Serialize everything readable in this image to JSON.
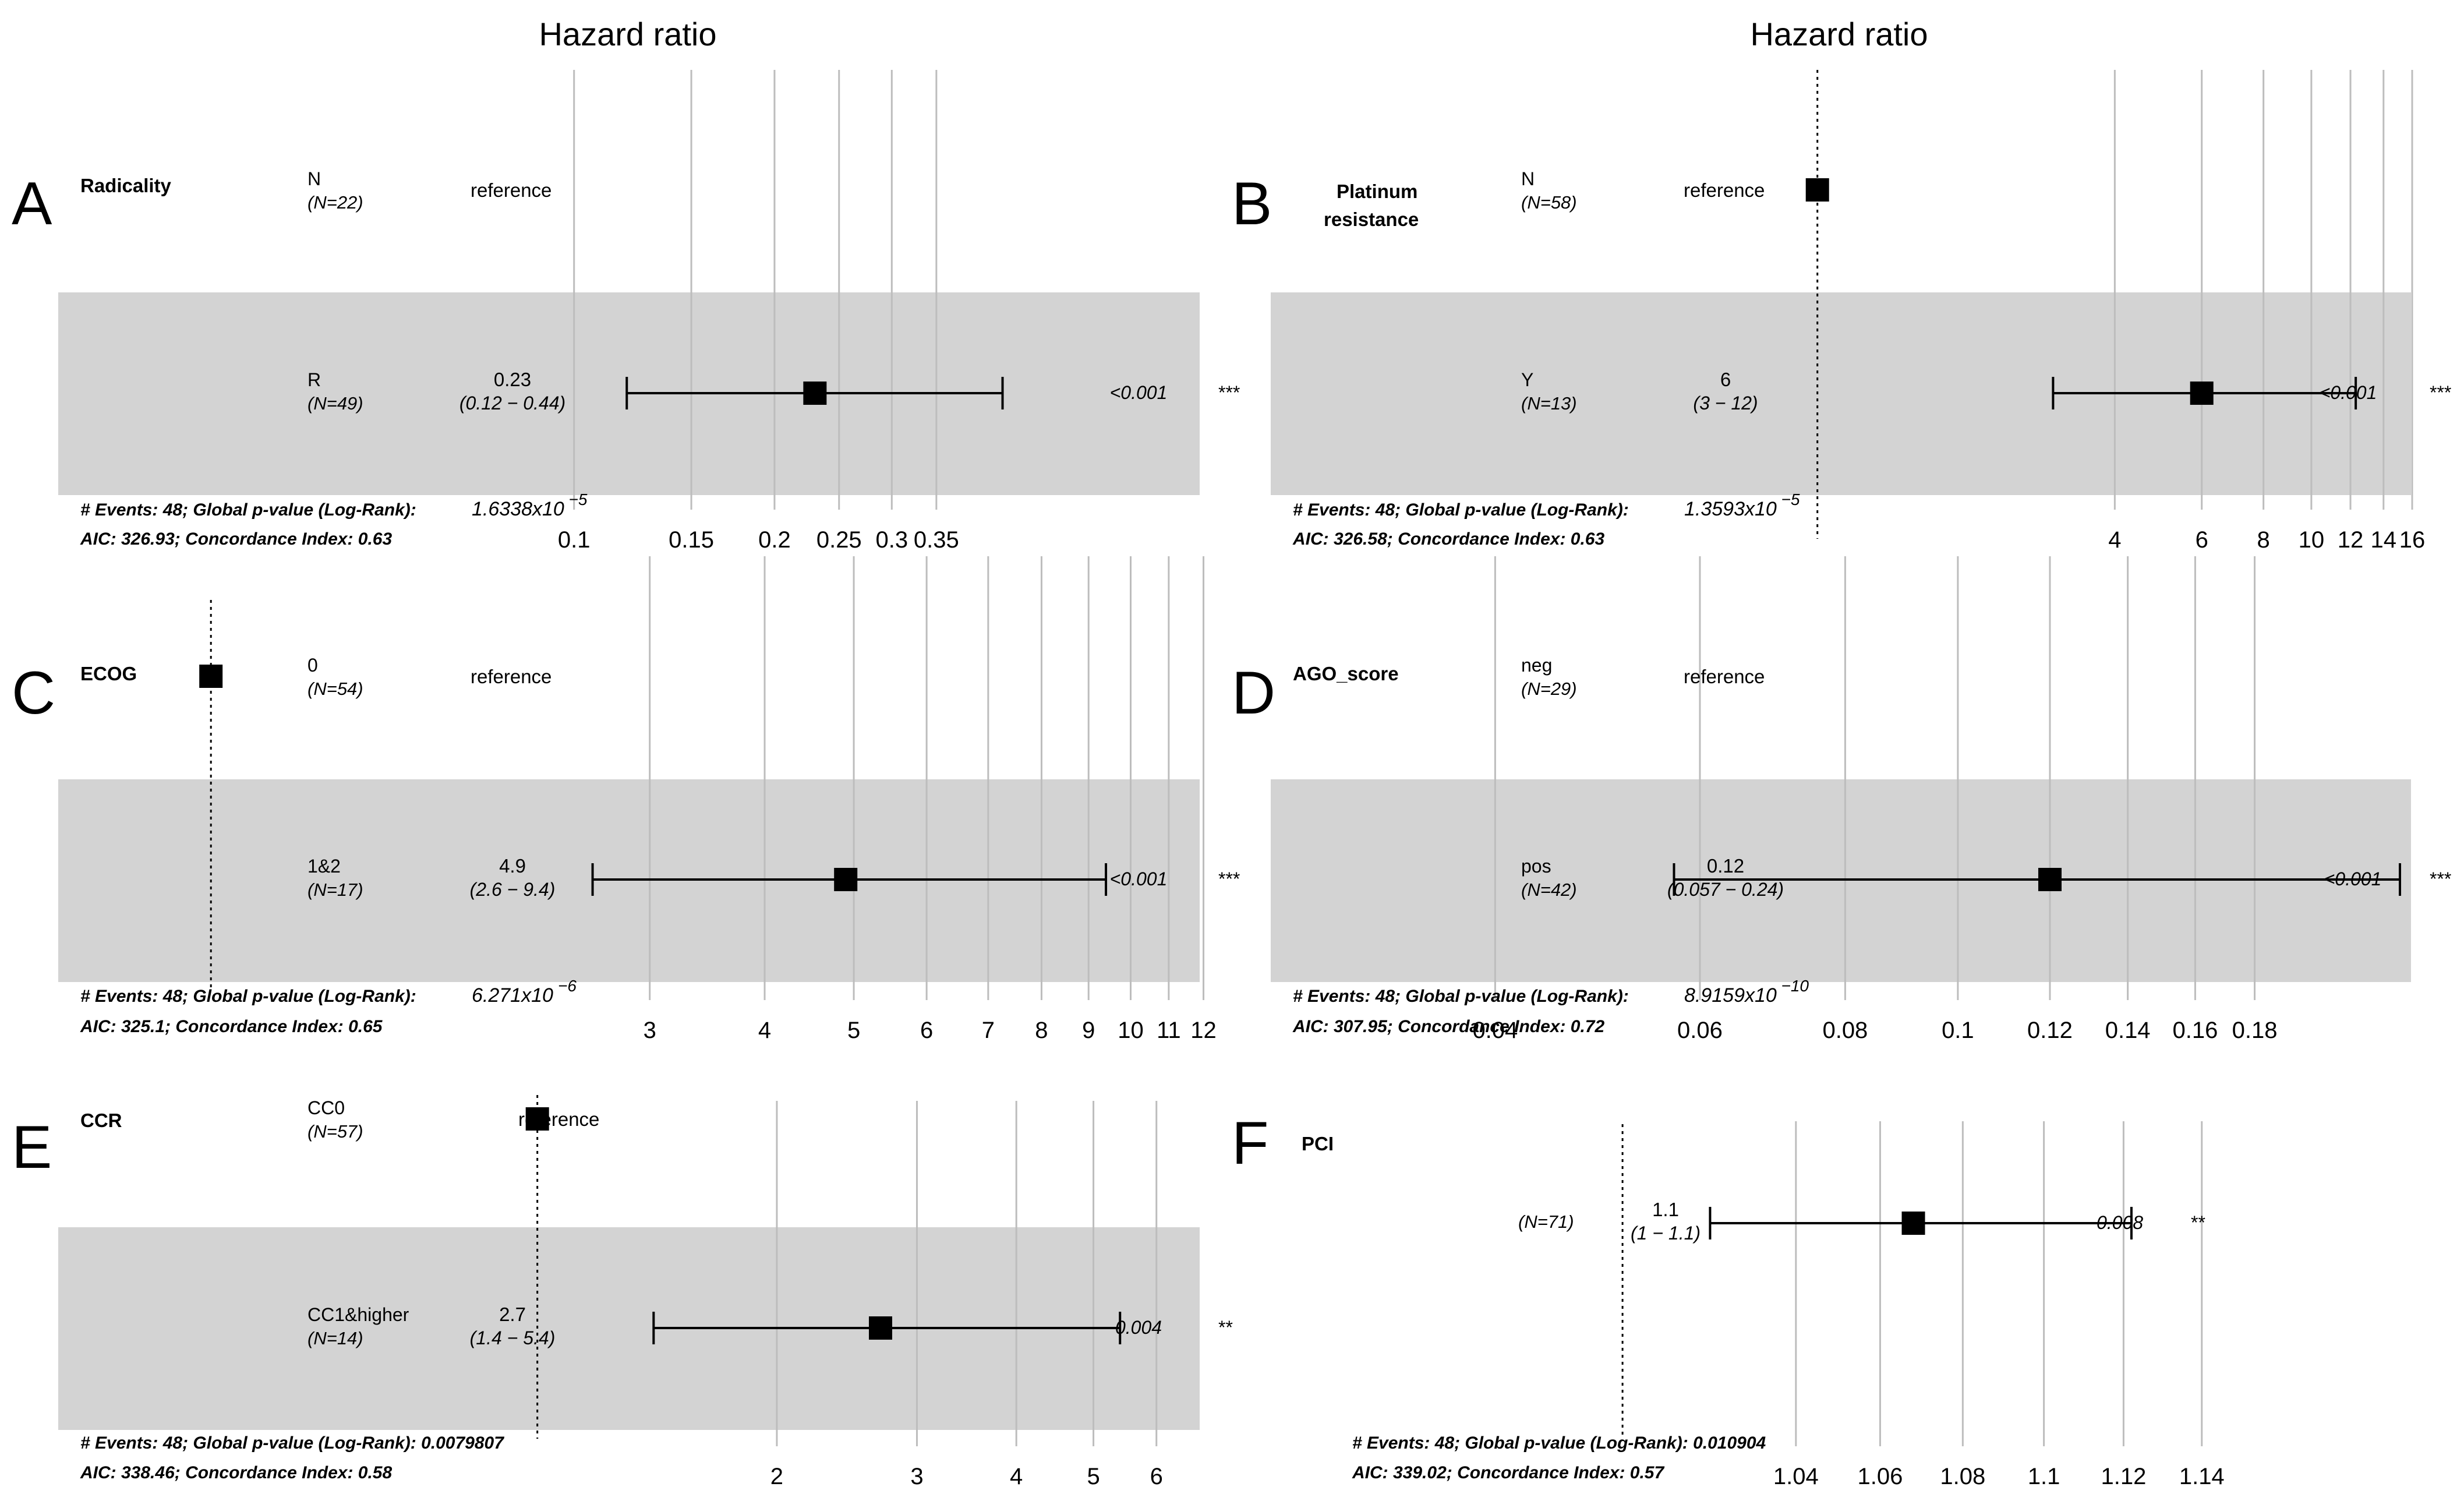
{
  "figure": {
    "hazard_label_left": "Hazard ratio",
    "hazard_label_right": "Hazard ratio"
  },
  "colors": {
    "band": "#d3d3d3",
    "grid": "#bdbdbd",
    "ink": "#000000"
  },
  "chart_data": [
    {
      "type": "forest",
      "panel": "A",
      "variable": [
        "Radicality"
      ],
      "scale": "log",
      "xlim": [
        0.085,
        0.5
      ],
      "ticks": [
        0.1,
        0.15,
        0.2,
        0.25,
        0.3,
        0.35
      ],
      "tick_labels": [
        "0.1",
        "0.15",
        "0.2",
        "0.25",
        "0.3",
        "0.35"
      ],
      "reference_line": null,
      "rows": [
        {
          "level": "N",
          "n": "(N=22)",
          "estimate_text": "reference",
          "ci_text": ""
        },
        {
          "level": "R",
          "n": "(N=49)",
          "estimate_text": "0.23",
          "ci_text": "(0.12 − 0.44)",
          "hr": 0.23,
          "lo": 0.12,
          "hi": 0.44,
          "p_text": "<0.001",
          "stars": "***"
        }
      ],
      "footer1": "# Events: 48; Global p-value (Log-Rank):",
      "pvalue": "1.6338x10",
      "pexp": "−5",
      "footer2": "AIC: 326.93; Concordance Index: 0.63"
    },
    {
      "type": "forest",
      "panel": "B",
      "variable": [
        "Platinum",
        "resistance"
      ],
      "scale": "log",
      "xlim": [
        0.92,
        17.5
      ],
      "ticks": [
        4,
        6,
        8,
        10,
        12,
        14,
        16
      ],
      "tick_labels": [
        "4",
        "6",
        "8",
        "10",
        "12",
        "14",
        "16"
      ],
      "reference_line": 1,
      "rows": [
        {
          "level": "N",
          "n": "(N=58)",
          "estimate_text": "reference",
          "ci_text": ""
        },
        {
          "level": "Y",
          "n": "(N=13)",
          "estimate_text": "6",
          "ci_text": "(3 − 12)",
          "hr": 6,
          "lo": 3,
          "hi": 12.3,
          "p_text": "<0.001",
          "stars": "***"
        }
      ],
      "footer1": "# Events: 48; Global p-value (Log-Rank):",
      "pvalue": "1.3593x10",
      "pexp": "−5",
      "footer2": "AIC: 326.58; Concordance Index: 0.63"
    },
    {
      "type": "forest",
      "panel": "C",
      "variable": [
        "ECOG"
      ],
      "scale": "log",
      "xlim": [
        0.92,
        12.6
      ],
      "ticks": [
        3,
        4,
        5,
        6,
        7,
        8,
        9,
        10,
        11,
        12
      ],
      "tick_labels": [
        "3",
        "4",
        "5",
        "6",
        "7",
        "8",
        "9",
        "10",
        "11",
        "12"
      ],
      "reference_line": 1,
      "rows": [
        {
          "level": "0",
          "n": "(N=54)",
          "estimate_text": "reference",
          "ci_text": ""
        },
        {
          "level": "1&2",
          "n": "(N=17)",
          "estimate_text": "4.9",
          "ci_text": "(2.6 − 9.4)",
          "hr": 4.9,
          "lo": 2.6,
          "hi": 9.4,
          "p_text": "<0.001",
          "stars": "***"
        }
      ],
      "footer1": "# Events: 48; Global p-value (Log-Rank):",
      "pvalue": "6.271x10",
      "pexp": "−6",
      "footer2": "AIC: 325.1; Concordance Index: 0.65"
    },
    {
      "type": "forest",
      "panel": "D",
      "variable": [
        "AGO_score"
      ],
      "scale": "log",
      "xlim": [
        0.0326,
        0.285
      ],
      "ticks": [
        0.04,
        0.06,
        0.08,
        0.1,
        0.12,
        0.14,
        0.16,
        0.18
      ],
      "tick_labels": [
        "0.04",
        "0.06",
        "0.08",
        "0.1",
        "0.12",
        "0.14",
        "0.16",
        "0.18"
      ],
      "reference_line": null,
      "rows": [
        {
          "level": "neg",
          "n": "(N=29)",
          "estimate_text": "reference",
          "ci_text": ""
        },
        {
          "level": "pos",
          "n": "(N=42)",
          "estimate_text": "0.12",
          "ci_text": "(0.057 − 0.24)",
          "hr": 0.12,
          "lo": 0.057,
          "hi": 0.24,
          "p_text": "<0.001",
          "stars": "***"
        }
      ],
      "footer1": "# Events: 48; Global p-value (Log-Rank):",
      "pvalue": "8.9159x10",
      "pexp": "−10",
      "footer2": "AIC: 307.95; Concordance Index: 0.72"
    },
    {
      "type": "forest",
      "panel": "E",
      "variable": [
        "CCR"
      ],
      "scale": "log",
      "xlim": [
        0.55,
        6.8
      ],
      "ticks": [
        2,
        3,
        4,
        5,
        6
      ],
      "tick_labels": [
        "2",
        "3",
        "4",
        "5",
        "6"
      ],
      "reference_line": 1,
      "rows": [
        {
          "level": "CC0",
          "n": "(N=57)",
          "estimate_text": "reference",
          "ci_text": ""
        },
        {
          "level": "CC1&higher",
          "n": "(N=14)",
          "estimate_text": "2.7",
          "ci_text": "(1.4 − 5.4)",
          "hr": 2.7,
          "lo": 1.4,
          "hi": 5.4,
          "p_text": "0.004",
          "stars": "**"
        }
      ],
      "footer1": "# Events: 48; Global p-value (Log-Rank): 0.0079807",
      "pvalue": "",
      "pexp": "",
      "footer2": "AIC: 338.46; Concordance Index: 0.58"
    },
    {
      "type": "forest",
      "panel": "F",
      "variable": [
        "PCI"
      ],
      "scale": "log",
      "xlim": [
        0.962,
        1.155
      ],
      "ticks": [
        1.04,
        1.06,
        1.08,
        1.1,
        1.12,
        1.14
      ],
      "tick_labels": [
        "1.04",
        "1.06",
        "1.08",
        "1.1",
        "1.12",
        "1.14"
      ],
      "reference_line": 1,
      "rows": [
        {
          "level": "",
          "n": "(N=71)",
          "estimate_text": "1.1",
          "ci_text": "(1 − 1.1)",
          "hr": 1.068,
          "lo": 1.02,
          "hi": 1.122,
          "p_text": "0.008",
          "stars": "**"
        }
      ],
      "footer1": "# Events: 48; Global p-value (Log-Rank): 0.010904",
      "pvalue": "",
      "pexp": "",
      "footer2": "AIC: 339.02; Concordance Index: 0.57"
    }
  ]
}
